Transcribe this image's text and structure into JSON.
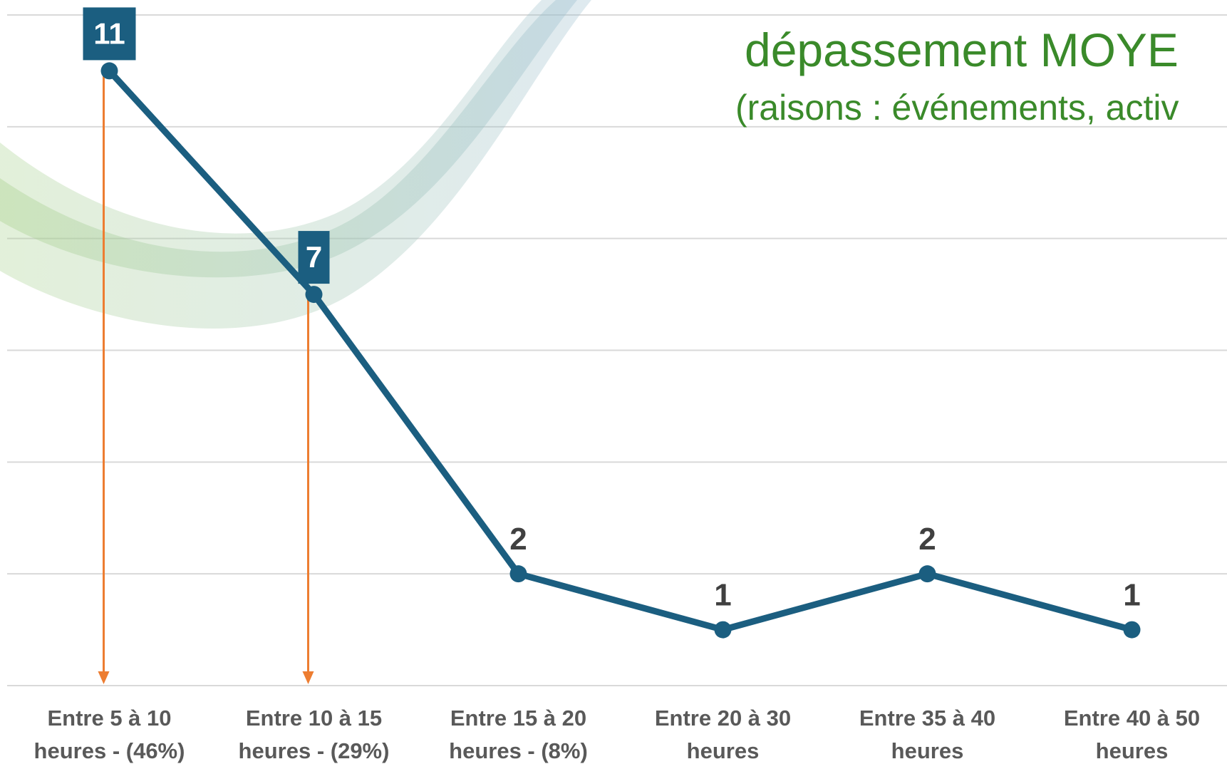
{
  "chart_data": {
    "type": "line",
    "title": "dépassement MOYE",
    "subtitle": "(raisons : événements, activ",
    "categories": [
      "Entre 5 à 10\nheures - (46%)",
      "Entre 10 à 15\nheures - (29%)",
      "Entre  15 à 20\nheures - (8%)",
      "Entre 20 à 30\nheures",
      "Entre 35 à 40\nheures",
      "Entre 40 à 50\nheures"
    ],
    "series": [
      {
        "color": "#1b5e80",
        "values": [
          11,
          7,
          2,
          1,
          2,
          1
        ]
      }
    ],
    "ylim": [
      0,
      12
    ],
    "yticks": [
      0,
      2,
      4,
      6,
      8,
      10,
      12
    ],
    "grid": true
  }
}
